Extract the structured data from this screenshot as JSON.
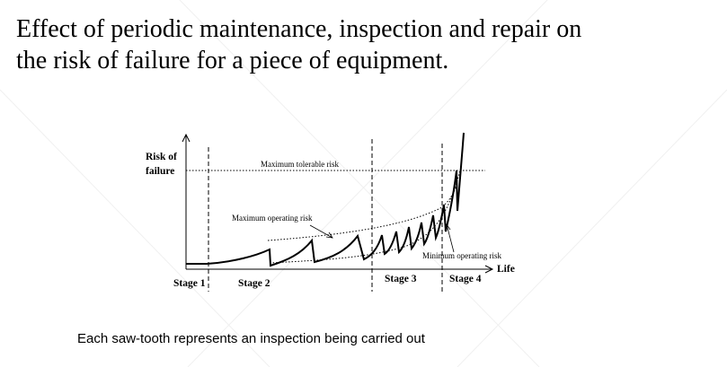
{
  "title": {
    "lines": [
      "Effect of periodic maintenance, inspection and repair on",
      "the risk of failure for a piece of equipment."
    ]
  },
  "diagram": {
    "y_axis_label": [
      "Risk of",
      "failure"
    ],
    "x_axis_label": "Life",
    "annotations": [
      "Maximum tolerable risk",
      "Maximum operating risk",
      "Minimum operating risk"
    ],
    "stages": [
      "Stage 1",
      "Stage 2",
      "Stage 3",
      "Stage 4"
    ]
  },
  "caption": "Each saw-tooth represents an inspection being carried out"
}
